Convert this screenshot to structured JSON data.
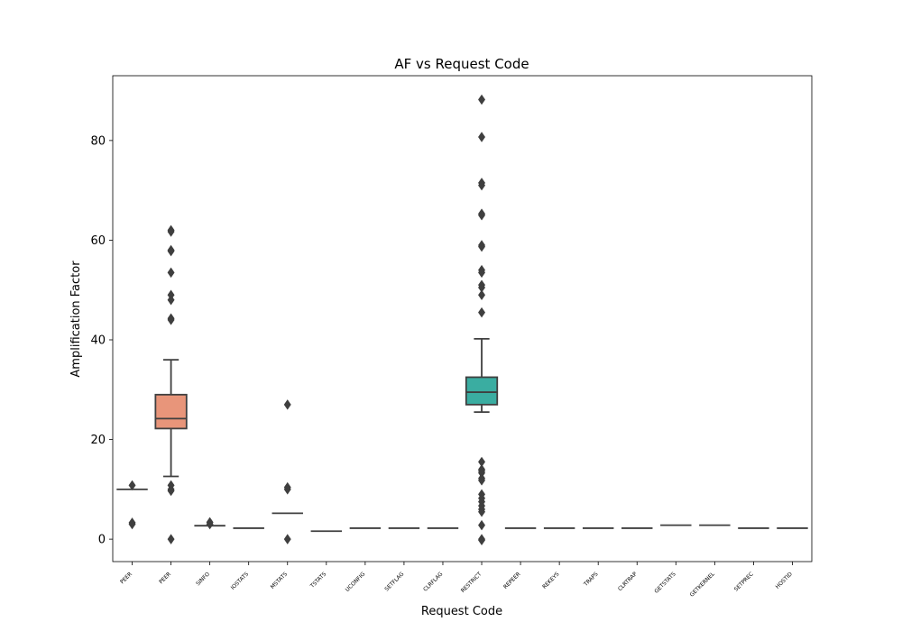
{
  "chart_data": {
    "type": "box",
    "title": "AF vs Request Code",
    "xlabel": "Request Code",
    "ylabel": "Amplification Factor",
    "ylim": [
      -4.5,
      93
    ],
    "yticks": [
      0,
      20,
      40,
      60,
      80
    ],
    "grid": false,
    "legend": "none",
    "categories": [
      "PEER",
      "PEER",
      "SINFO",
      "IOSTATS",
      "MSTATS",
      "TSTATS",
      "UCONFIG",
      "SETFLAG",
      "CLRFLAG",
      "RESTRICT",
      "REPEER",
      "REKEYS",
      "TRAPS",
      "CLRTRAP",
      "GETSTATS",
      "GETKERNEL",
      "SETPREC",
      "HOSTID"
    ],
    "boxes": [
      {
        "q1": 10.0,
        "median": 10.0,
        "q3": 10.0,
        "whisker_low": 10.0,
        "whisker_high": 10.0,
        "outliers": [
          10.8,
          3.3,
          3.0
        ],
        "color": "#8da0cb"
      },
      {
        "q1": 22.2,
        "median": 24.2,
        "q3": 29.0,
        "whisker_low": 12.6,
        "whisker_high": 36.0,
        "outliers": [
          62.0,
          61.7,
          58.0,
          57.8,
          53.5,
          49.0,
          48.0,
          44.3,
          44.0,
          10.8,
          10.0,
          9.7,
          0.0
        ],
        "color": "#e8957a"
      },
      {
        "q1": 2.7,
        "median": 2.7,
        "q3": 2.7,
        "whisker_low": 2.7,
        "whisker_high": 2.7,
        "outliers": [
          3.4,
          3.0
        ],
        "color": "#8da0cb"
      },
      {
        "q1": 2.2,
        "median": 2.2,
        "q3": 2.2,
        "whisker_low": 2.2,
        "whisker_high": 2.2,
        "outliers": [],
        "color": "#8da0cb"
      },
      {
        "q1": 5.2,
        "median": 5.2,
        "q3": 5.2,
        "whisker_low": 5.2,
        "whisker_high": 5.2,
        "outliers": [
          27.0,
          10.4,
          10.0,
          0.0
        ],
        "color": "#8da0cb"
      },
      {
        "q1": 1.6,
        "median": 1.6,
        "q3": 1.6,
        "whisker_low": 1.6,
        "whisker_high": 1.6,
        "outliers": [],
        "color": "#8da0cb"
      },
      {
        "q1": 2.2,
        "median": 2.2,
        "q3": 2.2,
        "whisker_low": 2.2,
        "whisker_high": 2.2,
        "outliers": [],
        "color": "#8da0cb"
      },
      {
        "q1": 2.2,
        "median": 2.2,
        "q3": 2.2,
        "whisker_low": 2.2,
        "whisker_high": 2.2,
        "outliers": [],
        "color": "#8da0cb"
      },
      {
        "q1": 2.2,
        "median": 2.2,
        "q3": 2.2,
        "whisker_low": 2.2,
        "whisker_high": 2.2,
        "outliers": [],
        "color": "#8da0cb"
      },
      {
        "q1": 27.0,
        "median": 29.5,
        "q3": 32.5,
        "whisker_low": 25.5,
        "whisker_high": 40.2,
        "outliers": [
          88.2,
          80.7,
          71.5,
          71.0,
          65.3,
          65.0,
          59.0,
          58.7,
          54.0,
          53.5,
          51.0,
          50.5,
          49.0,
          45.5,
          15.5,
          14.0,
          13.7,
          13.3,
          12.2,
          11.8,
          9.0,
          8.2,
          7.5,
          6.7,
          6.0,
          5.5,
          2.8,
          0.0,
          -0.2
        ],
        "color": "#3aada1"
      },
      {
        "q1": 2.2,
        "median": 2.2,
        "q3": 2.2,
        "whisker_low": 2.2,
        "whisker_high": 2.2,
        "outliers": [],
        "color": "#8da0cb"
      },
      {
        "q1": 2.2,
        "median": 2.2,
        "q3": 2.2,
        "whisker_low": 2.2,
        "whisker_high": 2.2,
        "outliers": [],
        "color": "#8da0cb"
      },
      {
        "q1": 2.2,
        "median": 2.2,
        "q3": 2.2,
        "whisker_low": 2.2,
        "whisker_high": 2.2,
        "outliers": [],
        "color": "#8da0cb"
      },
      {
        "q1": 2.2,
        "median": 2.2,
        "q3": 2.2,
        "whisker_low": 2.2,
        "whisker_high": 2.2,
        "outliers": [],
        "color": "#8da0cb"
      },
      {
        "q1": 2.8,
        "median": 2.8,
        "q3": 2.8,
        "whisker_low": 2.8,
        "whisker_high": 2.8,
        "outliers": [],
        "color": "#8da0cb"
      },
      {
        "q1": 2.8,
        "median": 2.8,
        "q3": 2.8,
        "whisker_low": 2.8,
        "whisker_high": 2.8,
        "outliers": [],
        "color": "#8da0cb"
      },
      {
        "q1": 2.2,
        "median": 2.2,
        "q3": 2.2,
        "whisker_low": 2.2,
        "whisker_high": 2.2,
        "outliers": [],
        "color": "#8da0cb"
      },
      {
        "q1": 2.2,
        "median": 2.2,
        "q3": 2.2,
        "whisker_low": 2.2,
        "whisker_high": 2.2,
        "outliers": [],
        "color": "#8da0cb"
      }
    ]
  }
}
